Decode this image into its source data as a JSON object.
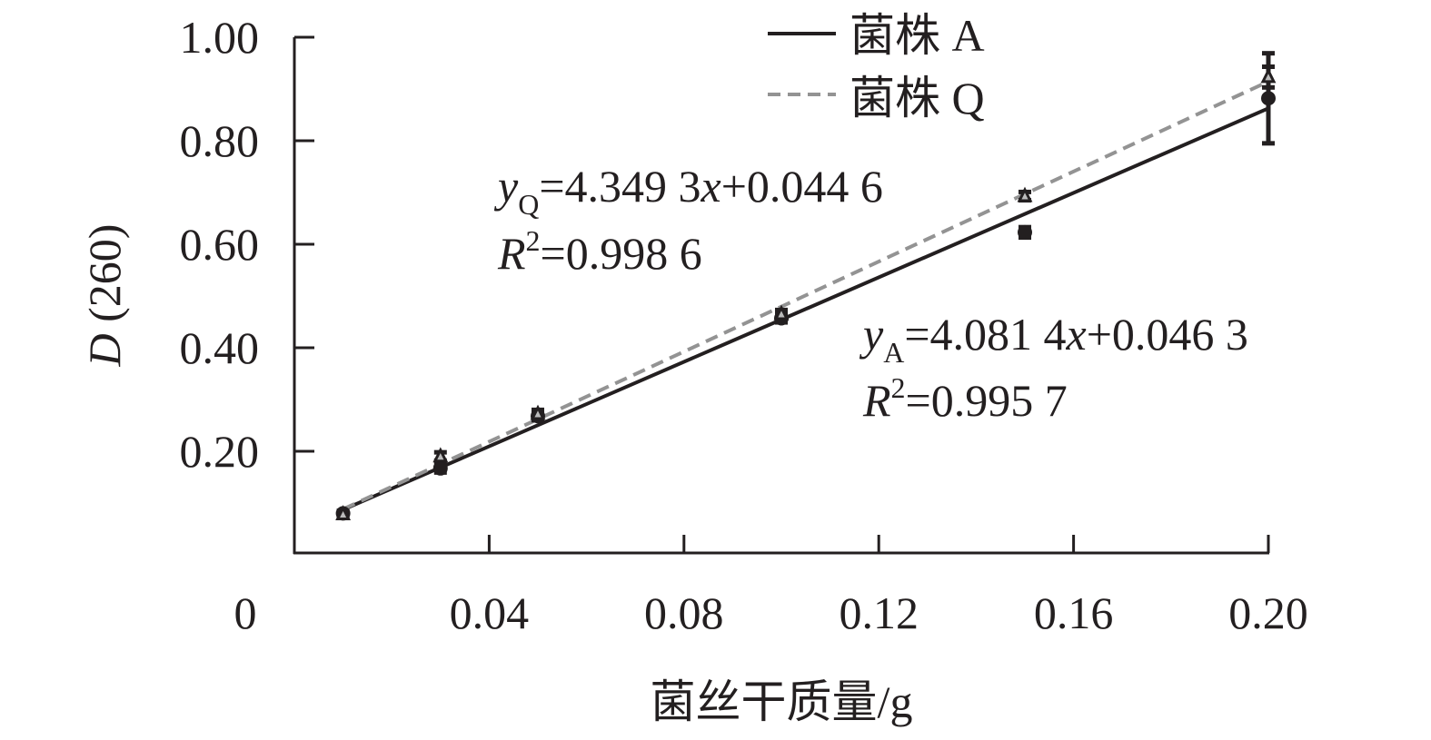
{
  "chart_data": {
    "type": "scatter",
    "xlabel": "菌丝干质量/g",
    "ylabel_italic": "D",
    "ylabel_rest": " (260)",
    "xlim": [
      0,
      0.2
    ],
    "ylim": [
      0,
      1.0
    ],
    "x_ticks": [
      "0",
      "0.04",
      "0.08",
      "0.12",
      "0.16",
      "0.20"
    ],
    "x_tick_values": [
      0,
      0.04,
      0.08,
      0.12,
      0.16,
      0.2
    ],
    "y_ticks": [
      "0.20",
      "0.40",
      "0.60",
      "0.80",
      "1.00"
    ],
    "y_tick_values": [
      0.2,
      0.4,
      0.6,
      0.8,
      1.0
    ],
    "grid": false,
    "legend_placement": "top-center",
    "series": [
      {
        "name": "菌株 A",
        "marker": "circle",
        "line_style": "solid",
        "color": "#231f20",
        "x": [
          0.01,
          0.03,
          0.05,
          0.1,
          0.15,
          0.2
        ],
        "y": [
          0.08,
          0.167,
          0.268,
          0.457,
          0.623,
          0.882
        ],
        "error": [
          0.005,
          0.008,
          0.008,
          0.008,
          0.01,
          0.087
        ],
        "fit": {
          "slope": 4.0814,
          "intercept": 0.0463
        }
      },
      {
        "name": "菌株 Q",
        "marker": "triangle",
        "line_style": "dashed",
        "color": "#939393",
        "x": [
          0.01,
          0.03,
          0.05,
          0.1,
          0.15,
          0.2
        ],
        "y": [
          0.078,
          0.19,
          0.272,
          0.465,
          0.693,
          0.923
        ],
        "error": [
          0.005,
          0.008,
          0.008,
          0.008,
          0.008,
          0.02
        ],
        "fit": {
          "slope": 4.3493,
          "intercept": 0.0446
        }
      }
    ],
    "annotations": {
      "q_eq": {
        "y": "y",
        "sub": "Q",
        "eq1": "=4.349 3",
        "x": "x",
        "eq2": "+0.044 6",
        "r": "R",
        "sup": "2",
        "r2": "=0.998 6"
      },
      "a_eq": {
        "y": "y",
        "sub": "A",
        "eq1": "=4.081 4",
        "x": "x",
        "eq2": "+0.046 3",
        "r": "R",
        "sup": "2",
        "r2": "=0.995 7"
      }
    }
  }
}
